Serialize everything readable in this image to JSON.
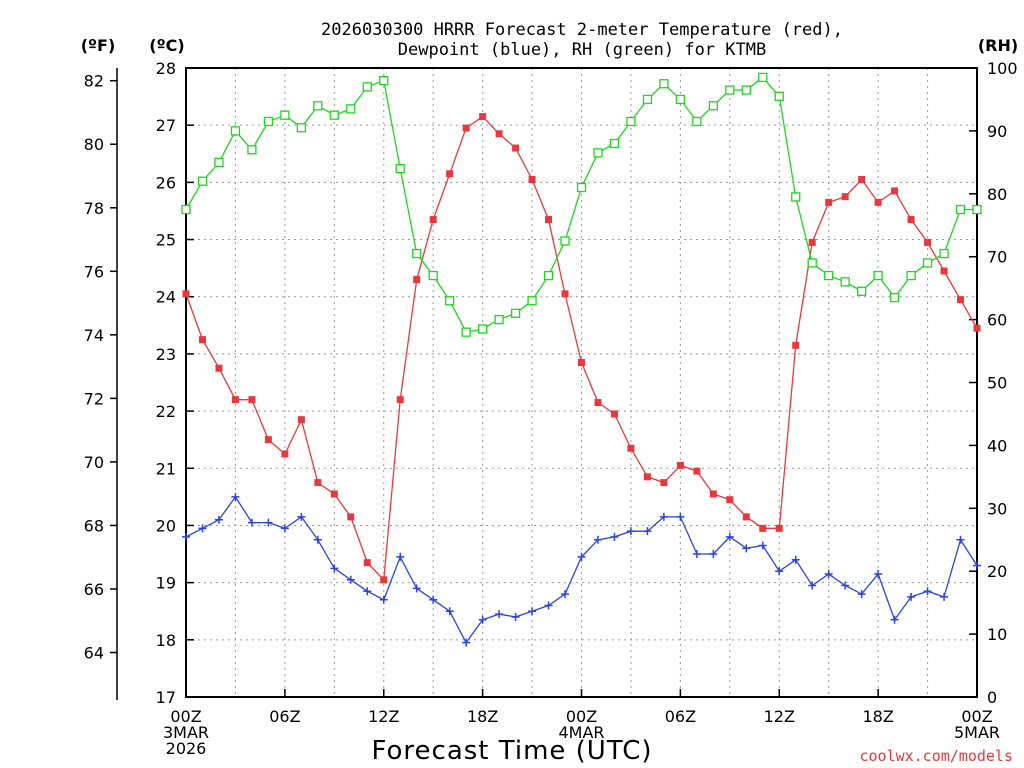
{
  "chart_data": {
    "type": "line",
    "title_line1": "2026030300 HRRR Forecast 2-meter Temperature (red),",
    "title_line2": "Dewpoint (blue), RH (green) for KTMB",
    "xlabel": "Forecast Time (UTC)",
    "credit": "coolwx.com/models",
    "units": {
      "fahrenheit": "(ºF)",
      "celsius": "(ºC)",
      "rh": "(RH)"
    },
    "x_hours": [
      0,
      1,
      2,
      3,
      4,
      5,
      6,
      7,
      8,
      9,
      10,
      11,
      12,
      13,
      14,
      15,
      16,
      17,
      18,
      19,
      20,
      21,
      22,
      23,
      24,
      25,
      26,
      27,
      28,
      29,
      30,
      31,
      32,
      33,
      34,
      35,
      36,
      37,
      38,
      39,
      40,
      41,
      42,
      43,
      44,
      45,
      46,
      47,
      48
    ],
    "x_ticks": [
      {
        "hour": 0,
        "lines": [
          "00Z",
          "3MAR",
          "2026"
        ]
      },
      {
        "hour": 6,
        "lines": [
          "06Z"
        ]
      },
      {
        "hour": 12,
        "lines": [
          "12Z"
        ]
      },
      {
        "hour": 18,
        "lines": [
          "18Z"
        ]
      },
      {
        "hour": 24,
        "lines": [
          "00Z",
          "4MAR"
        ]
      },
      {
        "hour": 30,
        "lines": [
          "06Z"
        ]
      },
      {
        "hour": 36,
        "lines": [
          "12Z"
        ]
      },
      {
        "hour": 42,
        "lines": [
          "18Z"
        ]
      },
      {
        "hour": 48,
        "lines": [
          "00Z",
          "5MAR"
        ]
      }
    ],
    "xlim": [
      0,
      48
    ],
    "celsius_axis": {
      "range": [
        17,
        28
      ],
      "ticks": [
        "17",
        "18",
        "19",
        "20",
        "21",
        "22",
        "23",
        "24",
        "25",
        "26",
        "27",
        "28"
      ]
    },
    "fahrenheit_axis": {
      "ticks": [
        "64",
        "66",
        "68",
        "70",
        "72",
        "74",
        "76",
        "78",
        "80",
        "82"
      ]
    },
    "rh_axis": {
      "range": [
        0,
        100
      ],
      "ticks": [
        "0",
        "10",
        "20",
        "30",
        "40",
        "50",
        "60",
        "70",
        "80",
        "90",
        "100"
      ]
    },
    "grid": true,
    "series": [
      {
        "name": "Temperature",
        "axis": "celsius",
        "color": "#e8383d",
        "marker": "filled-square",
        "values": [
          24.05,
          23.25,
          22.75,
          22.2,
          22.2,
          21.5,
          21.25,
          21.85,
          20.75,
          20.55,
          20.15,
          19.35,
          19.05,
          22.2,
          24.3,
          25.35,
          26.15,
          26.95,
          27.15,
          26.85,
          26.6,
          26.05,
          25.35,
          24.05,
          22.85,
          22.15,
          21.95,
          21.35,
          20.85,
          20.75,
          21.05,
          20.95,
          20.55,
          20.45,
          20.15,
          19.95,
          19.95,
          23.15,
          24.95,
          25.65,
          25.75,
          26.05,
          25.65,
          25.85,
          25.35,
          24.95,
          24.45,
          23.95,
          23.45
        ]
      },
      {
        "name": "Dewpoint",
        "axis": "celsius",
        "color": "#2a45e0",
        "marker": "plus",
        "values": [
          19.8,
          19.95,
          20.1,
          20.5,
          20.05,
          20.05,
          19.95,
          20.15,
          19.75,
          19.25,
          19.05,
          18.85,
          18.7,
          19.45,
          18.9,
          18.7,
          18.5,
          17.95,
          18.35,
          18.45,
          18.4,
          18.5,
          18.6,
          18.8,
          19.45,
          19.75,
          19.8,
          19.9,
          19.9,
          20.15,
          20.15,
          19.5,
          19.5,
          19.8,
          19.6,
          19.65,
          19.2,
          19.4,
          18.95,
          19.15,
          18.95,
          18.8,
          19.15,
          18.35,
          18.75,
          18.85,
          18.75,
          19.75,
          19.3
        ]
      },
      {
        "name": "RH",
        "axis": "rh",
        "color": "#1ed61e",
        "marker": "open-square",
        "values": [
          77.5,
          82,
          85,
          90,
          87,
          91.5,
          92.5,
          90.5,
          94,
          92.5,
          93.5,
          97,
          98,
          84,
          70.5,
          67,
          63,
          58,
          58.5,
          60,
          61,
          63,
          67,
          72.5,
          81,
          86.5,
          88,
          91.5,
          95,
          97.5,
          95,
          91.5,
          94,
          96.5,
          96.5,
          98.5,
          95.5,
          79.5,
          69,
          67,
          66,
          64.5,
          67,
          63.5,
          67,
          69,
          70.5,
          77.5,
          77.5
        ]
      }
    ]
  }
}
